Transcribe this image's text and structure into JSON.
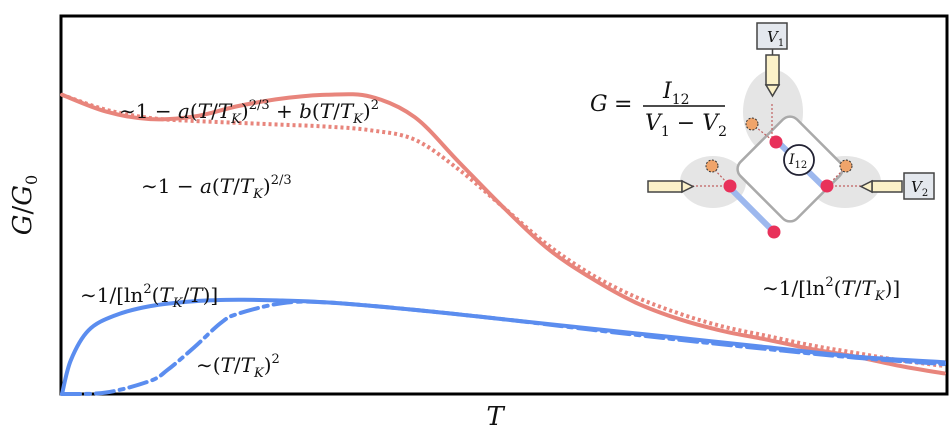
{
  "chart_data": {
    "type": "line",
    "title": "",
    "xlabel": "T",
    "ylabel": "G/G₀",
    "xlim": [
      0,
      1
    ],
    "ylim": [
      0,
      1
    ],
    "grid": false,
    "series": [
      {
        "color": "#e8857c",
        "style": "solid",
        "x": [
          0.0,
          0.05,
          0.1,
          0.15,
          0.2,
          0.25,
          0.3,
          0.35,
          0.4,
          0.45,
          0.5,
          0.55,
          0.6,
          0.65,
          0.7,
          0.75,
          0.8,
          0.85,
          0.9,
          0.95,
          1.0
        ],
        "y": [
          0.8,
          0.755,
          0.735,
          0.742,
          0.77,
          0.79,
          0.8,
          0.795,
          0.74,
          0.62,
          0.5,
          0.39,
          0.31,
          0.245,
          0.2,
          0.168,
          0.145,
          0.12,
          0.1,
          0.075,
          0.055
        ]
      },
      {
        "color": "#e8857c",
        "style": "dotted",
        "x": [
          0.0,
          0.05,
          0.1,
          0.15,
          0.2,
          0.25,
          0.3,
          0.35,
          0.4,
          0.45,
          0.5,
          0.55,
          0.6,
          0.65,
          0.7,
          0.75,
          0.8,
          0.85,
          0.9,
          0.95,
          1.0
        ],
        "y": [
          0.8,
          0.76,
          0.738,
          0.73,
          0.725,
          0.72,
          0.715,
          0.705,
          0.68,
          0.6,
          0.5,
          0.4,
          0.32,
          0.26,
          0.215,
          0.18,
          0.155,
          0.13,
          0.11,
          0.09,
          0.075
        ]
      },
      {
        "color": "#5b8def",
        "style": "solid",
        "x": [
          0.0,
          0.01,
          0.03,
          0.06,
          0.1,
          0.15,
          0.2,
          0.25,
          0.3,
          0.4,
          0.5,
          0.6,
          0.7,
          0.8,
          0.9,
          1.0
        ],
        "y": [
          0.0,
          0.09,
          0.17,
          0.21,
          0.235,
          0.248,
          0.252,
          0.25,
          0.245,
          0.225,
          0.2,
          0.175,
          0.15,
          0.125,
          0.1,
          0.085
        ]
      },
      {
        "color": "#5b8def",
        "style": "dashdot",
        "x": [
          0.0,
          0.05,
          0.1,
          0.12,
          0.15,
          0.18,
          0.2,
          0.25,
          0.3,
          0.4,
          0.5,
          0.6,
          0.7,
          0.8,
          0.9,
          1.0
        ],
        "y": [
          0.0,
          0.004,
          0.035,
          0.065,
          0.125,
          0.19,
          0.215,
          0.243,
          0.245,
          0.225,
          0.2,
          0.172,
          0.145,
          0.12,
          0.097,
          0.08
        ]
      }
    ],
    "annotations": {
      "red_solid": "∼1 − a(T/T_K)^{2/3} + b(T/T_K)^2",
      "red_dotted": "∼1 − a(T/T_K)^{2/3}",
      "red_tail": "∼1/[ln^2(T/T_K)]",
      "blue_solid": "∼1/[ln^2(T_K/T)]",
      "blue_dashdot": "∼(T/T_K)^2",
      "formula": "G = I_12 / (V_1 − V_2)"
    },
    "inset": {
      "labels": {
        "v1": "V₁",
        "v2": "V₂",
        "i12": "I₁₂"
      },
      "colors": {
        "dot": "#e8315a",
        "orange": "#f0a46a",
        "probe": "#fbf1c8",
        "box": "#e4e8ee",
        "wire": "#9db8ee"
      }
    }
  }
}
